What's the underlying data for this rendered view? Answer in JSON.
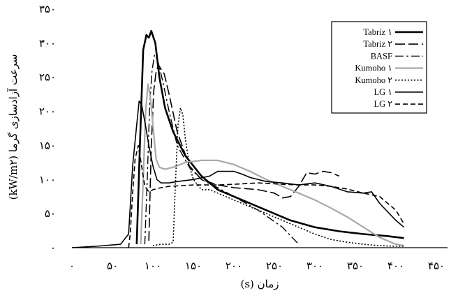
{
  "chart_data": {
    "type": "line",
    "xlabel": "زمان (s)",
    "ylabel": "سرعت آزادسازی گرما (kW/m۲)",
    "xlim": [
      0,
      450
    ],
    "ylim": [
      0,
      350
    ],
    "x_ticks": [
      "۰",
      "۵۰",
      "۱۰۰",
      "۱۵۰",
      "۲۰۰",
      "۲۵۰",
      "۳۰۰",
      "۳۵۰",
      "۴۰۰",
      "۴۵۰"
    ],
    "y_ticks": [
      "۰",
      "۵۰",
      "۱۰۰",
      "۱۵۰",
      "۲۰۰",
      "۲۵۰",
      "۳۰۰",
      "۳۵۰"
    ],
    "grid": false,
    "legend_position": "top-right",
    "series": [
      {
        "name": "Tabriz ۱",
        "color": "#000000",
        "style": "solid",
        "width": 2.6,
        "x": [
          80,
          84,
          88,
          92,
          95,
          98,
          103,
          108,
          115,
          125,
          140,
          160,
          180,
          210,
          240,
          270,
          300,
          330,
          360,
          390,
          410
        ],
        "y": [
          5,
          150,
          290,
          312,
          308,
          318,
          300,
          250,
          205,
          170,
          135,
          105,
          85,
          70,
          55,
          40,
          30,
          24,
          20,
          17,
          14
        ]
      },
      {
        "name": "Tabriz ۲",
        "color": "#000000",
        "style": "longdash",
        "width": 1.6,
        "x": [
          95,
          98,
          101,
          104,
          107,
          110,
          114,
          120,
          130,
          145,
          160,
          180,
          200,
          230,
          250,
          260,
          270,
          280,
          290,
          300,
          310,
          320,
          330
        ],
        "y": [
          10,
          150,
          230,
          258,
          268,
          262,
          255,
          225,
          170,
          120,
          100,
          92,
          88,
          85,
          80,
          73,
          75,
          90,
          110,
          108,
          112,
          110,
          105
        ]
      },
      {
        "name": "BASF",
        "color": "#000000",
        "style": "dashdot",
        "width": 1.4,
        "x": [
          90,
          93,
          96,
          99,
          102,
          104,
          107,
          112,
          120,
          130,
          145,
          160,
          180,
          200,
          230,
          260,
          280
        ],
        "y": [
          5,
          100,
          210,
          260,
          283,
          280,
          270,
          245,
          200,
          150,
          118,
          100,
          88,
          75,
          55,
          30,
          5
        ]
      },
      {
        "name": "Kumoho ۱",
        "color": "#a9a9a9",
        "style": "solid",
        "width": 2.2,
        "x": [
          85,
          88,
          91,
          94,
          97,
          100,
          104,
          108,
          115,
          125,
          140,
          160,
          180,
          200,
          220,
          240,
          260,
          280,
          300,
          320,
          340,
          360,
          380,
          400,
          410
        ],
        "y": [
          5,
          100,
          200,
          240,
          220,
          180,
          130,
          118,
          115,
          118,
          125,
          128,
          128,
          122,
          112,
          100,
          90,
          80,
          70,
          58,
          45,
          30,
          15,
          5,
          3
        ]
      },
      {
        "name": "Kumoho ۲",
        "color": "#000000",
        "style": "dotted",
        "width": 1.6,
        "x": [
          100,
          110,
          120,
          125,
          128,
          131,
          134,
          137,
          140,
          145,
          150,
          160,
          170,
          180,
          190,
          200,
          220,
          240,
          260,
          280,
          300,
          320,
          340,
          360,
          380,
          400,
          410
        ],
        "y": [
          3,
          5,
          5,
          8,
          100,
          180,
          205,
          195,
          160,
          120,
          100,
          85,
          85,
          80,
          75,
          70,
          60,
          50,
          40,
          30,
          20,
          12,
          8,
          5,
          3,
          2,
          2
        ]
      },
      {
        "name": "LG ۱",
        "color": "#000000",
        "style": "solid",
        "width": 1.6,
        "x": [
          0,
          30,
          60,
          70,
          75,
          80,
          83,
          86,
          90,
          95,
          100,
          105,
          110,
          120,
          130,
          150,
          170,
          180,
          200,
          210,
          220,
          240,
          260,
          280,
          300,
          320,
          340,
          360,
          370,
          380,
          400,
          410
        ],
        "y": [
          0,
          2,
          5,
          20,
          120,
          180,
          215,
          210,
          185,
          150,
          120,
          100,
          95,
          95,
          97,
          100,
          105,
          112,
          112,
          108,
          103,
          97,
          95,
          92,
          95,
          90,
          82,
          80,
          82,
          65,
          40,
          30
        ]
      },
      {
        "name": "LG ۲",
        "color": "#000000",
        "style": "dashed",
        "width": 1.6,
        "x": [
          70,
          72,
          75,
          78,
          82,
          86,
          90,
          95,
          100,
          110,
          120,
          150,
          180,
          200,
          230,
          260,
          280,
          300,
          320,
          340,
          360,
          380,
          400,
          410
        ],
        "y": [
          0,
          20,
          80,
          130,
          150,
          120,
          90,
          82,
          85,
          88,
          90,
          92,
          92,
          93,
          95,
          93,
          92,
          92,
          90,
          86,
          80,
          75,
          55,
          35
        ]
      }
    ]
  }
}
